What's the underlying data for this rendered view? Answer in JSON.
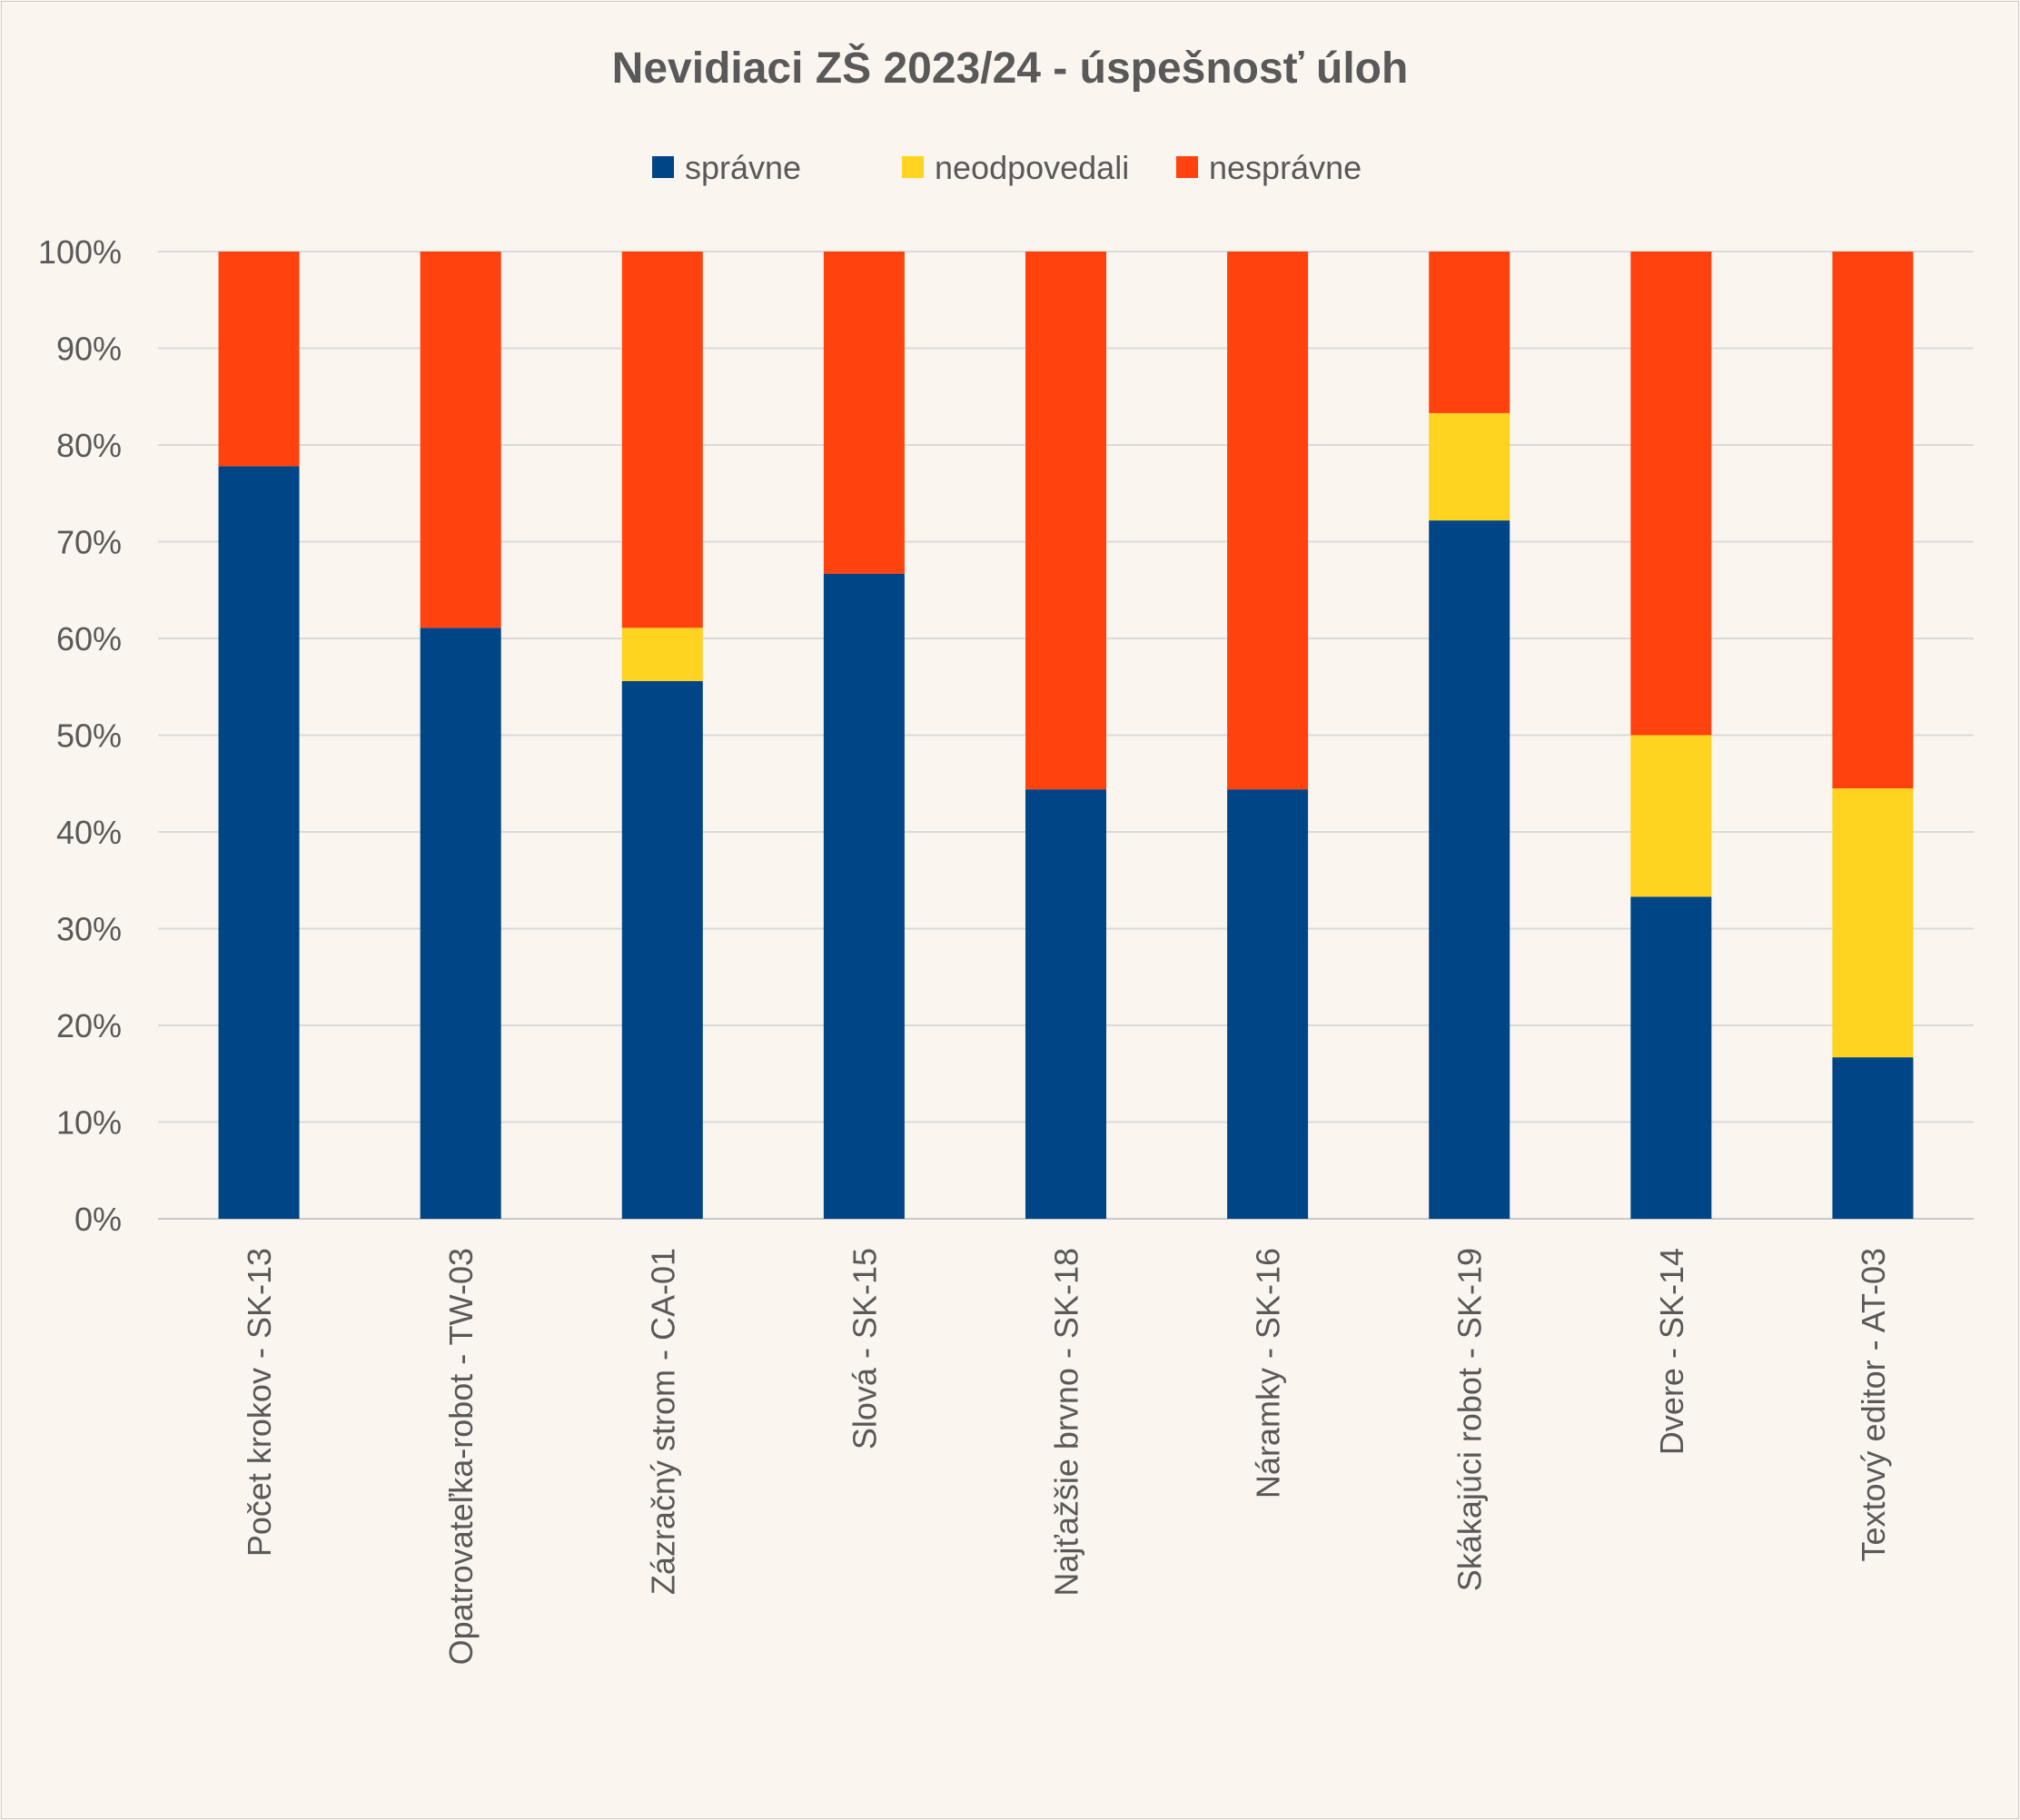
{
  "chart_data": {
    "type": "bar",
    "stacked": true,
    "title": "Nevidiaci ZŠ 2023/24 - úspešnosť úloh",
    "xlabel": "",
    "ylabel": "",
    "ylim": [
      0,
      100
    ],
    "y_ticks": [
      "0%",
      "10%",
      "20%",
      "30%",
      "40%",
      "50%",
      "60%",
      "70%",
      "80%",
      "90%",
      "100%"
    ],
    "grid": true,
    "legend_position": "top",
    "categories": [
      "Počet krokov - SK-13",
      "Opatrovateľka-robot - TW-03",
      "Zázračný strom - CA-01",
      "Slová - SK-15",
      "Najťažšie brvno - SK-18",
      "Náramky - SK-16",
      "Skákajúci robot - SK-19",
      "Dvere - SK-14",
      "Textový editor - AT-03"
    ],
    "series": [
      {
        "name": "správne",
        "color": "#004586",
        "values": [
          77.8,
          61.1,
          55.6,
          66.7,
          44.4,
          44.4,
          72.2,
          33.3,
          16.7
        ]
      },
      {
        "name": "neodpovedali",
        "color": "#ffd320",
        "values": [
          0,
          0,
          5.5,
          0,
          0,
          0,
          11.1,
          16.7,
          27.8
        ]
      },
      {
        "name": "nesprávne",
        "color": "#ff420e",
        "values": [
          22.2,
          38.9,
          38.9,
          33.3,
          55.6,
          55.6,
          16.7,
          50.0,
          55.5
        ]
      }
    ]
  }
}
